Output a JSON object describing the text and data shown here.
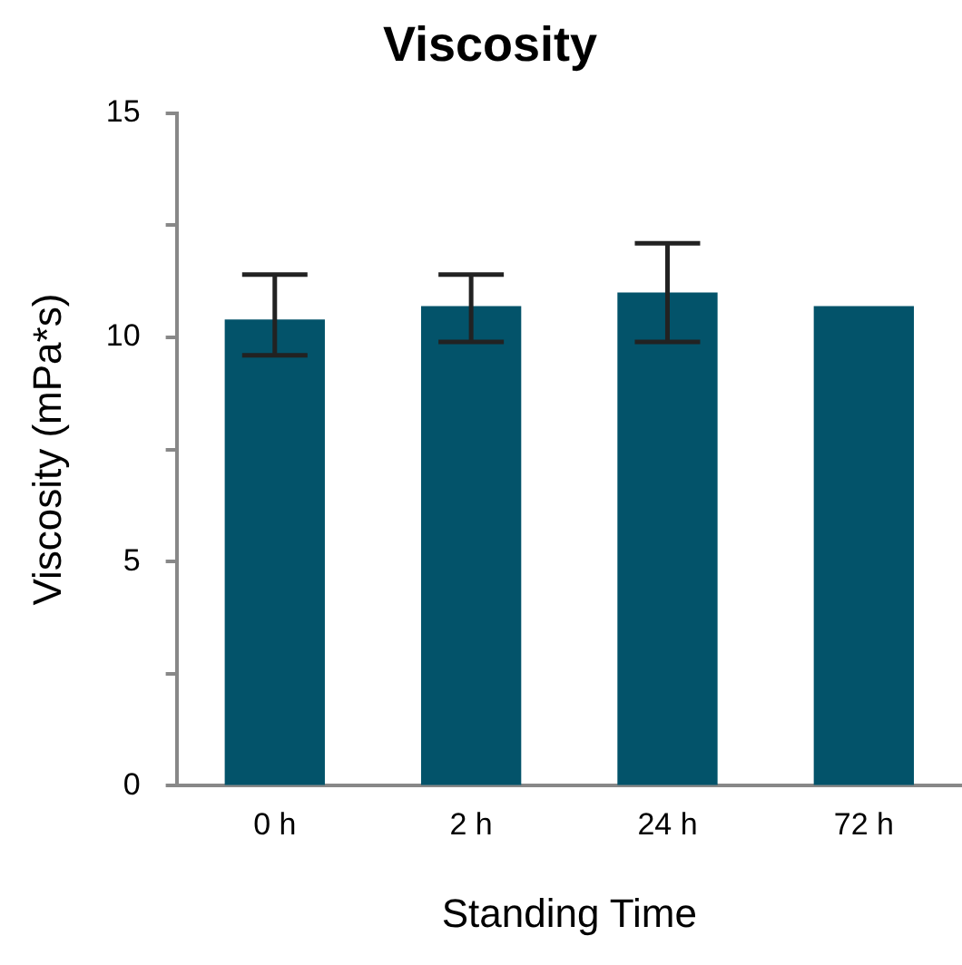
{
  "chart_data": {
    "type": "bar",
    "title": "Viscosity",
    "xlabel": "Standing Time",
    "ylabel": "Viscosity (mPa*s)",
    "categories": [
      "0 h",
      "2 h",
      "24 h",
      "72 h"
    ],
    "values": [
      10.4,
      10.7,
      11.0,
      10.7
    ],
    "errors": [
      [
        9.6,
        11.4
      ],
      [
        9.9,
        11.4
      ],
      [
        9.9,
        12.1
      ],
      null
    ],
    "color": "#03536a",
    "ylim": [
      0,
      15
    ],
    "yticks": [
      0,
      {
        "value": 2.5,
        "label": null
      },
      5,
      {
        "value": 7.5,
        "label": null
      },
      10,
      {
        "value": 12.5,
        "label": null
      },
      15
    ],
    "grid": false,
    "legend": false
  }
}
